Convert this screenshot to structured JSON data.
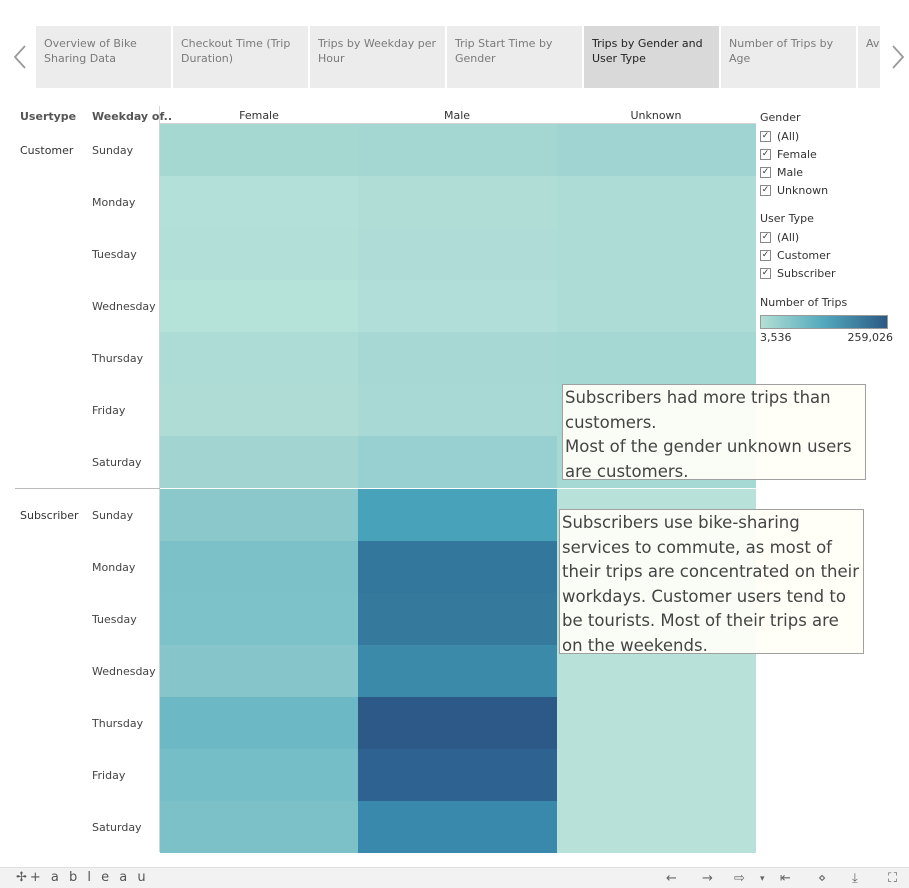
{
  "story": {
    "tabs": [
      {
        "label": "Overview of Bike Sharing Data"
      },
      {
        "label": "Checkout Time (Trip Duration)"
      },
      {
        "label": "Trips by Weekday per Hour"
      },
      {
        "label": "Trip Start Time by Gender"
      },
      {
        "label": "Trips by Gender and User Type"
      },
      {
        "label": "Number of Trips by Age"
      },
      {
        "label": "Average Trips by"
      }
    ],
    "active_tab": 4
  },
  "table": {
    "row_header_usertype": "Usertype",
    "row_header_weekday": "Weekday of..",
    "columns": [
      "Female",
      "Male",
      "Unknown"
    ],
    "groups": [
      {
        "label": "Customer",
        "days": [
          "Sunday",
          "Monday",
          "Tuesday",
          "Wednesday",
          "Thursday",
          "Friday",
          "Saturday"
        ]
      },
      {
        "label": "Subscriber",
        "days": [
          "Sunday",
          "Monday",
          "Tuesday",
          "Wednesday",
          "Thursday",
          "Friday",
          "Saturday"
        ]
      }
    ],
    "cell_colors": [
      [
        "#a6d8d2",
        "#a4d6d2",
        "#a0d4d2"
      ],
      [
        "#b3e0d8",
        "#b0ddd6",
        "#addcd7"
      ],
      [
        "#b2dfd7",
        "#afdcd6",
        "#addcd7"
      ],
      [
        "#b5e2d9",
        "#b1ded8",
        "#addcd7"
      ],
      [
        "#acdcd5",
        "#a8d8d3",
        "#a5d7d3"
      ],
      [
        "#afddd6",
        "#a9d9d4",
        "#a6d8d4"
      ],
      [
        "#a2d4d2",
        "#98cfd0",
        "#a6d8d4"
      ],
      [
        "#8bc8cb",
        "#48a3ba",
        "#b8e2d9"
      ],
      [
        "#7cc1c8",
        "#33779c",
        "#b8e2d9"
      ],
      [
        "#7ec2c9",
        "#357a9d",
        "#b8e2d9"
      ],
      [
        "#86c6cb",
        "#3b8aaa",
        "#b8e2d9"
      ],
      [
        "#6db8c5",
        "#2c5987",
        "#b8e2d9"
      ],
      [
        "#75bdc7",
        "#2e6290",
        "#b8e2d9"
      ],
      [
        "#7dc1c8",
        "#3889ab",
        "#b8e2d9"
      ]
    ]
  },
  "legend": {
    "gender": {
      "title": "Gender",
      "items": [
        "(All)",
        "Female",
        "Male",
        "Unknown"
      ]
    },
    "user_type": {
      "title": "User Type",
      "items": [
        "(All)",
        "Customer",
        "Subscriber"
      ]
    },
    "trips": {
      "title": "Number of Trips",
      "min_label": "3,536",
      "max_label": "259,026",
      "color_low": "#b2dfd4",
      "color_high": "#2b5a84"
    }
  },
  "annotations": [
    "Subscribers had more trips than customers.\nMost of the gender unknown users are customers.",
    "Subscribers use bike-sharing services to commute, as most of their trips are concentrated on their workdays. Customer users tend to be tourists. Most of their trips are on the weekends."
  ],
  "footer": {
    "logo": "+ a b l e a u"
  }
}
